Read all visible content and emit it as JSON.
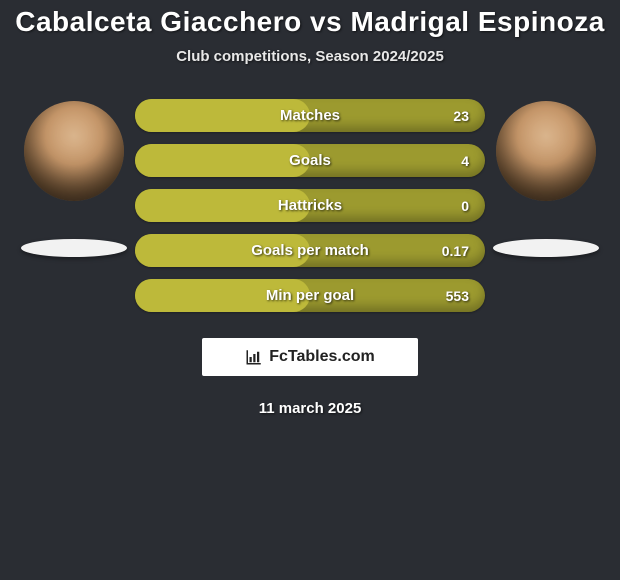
{
  "title": "Cabalceta Giacchero vs Madrigal Espinoza",
  "subtitle": "Club competitions, Season 2024/2025",
  "date": "11 march 2025",
  "brand": {
    "text": "FcTables.com"
  },
  "colors": {
    "background": "#2a2d33",
    "bar_base": "#9c9a2f",
    "bar_fill": "#bdb93a",
    "text": "#ffffff",
    "badge": "#f2f2f2",
    "brand_bg": "#ffffff",
    "brand_text": "#222222"
  },
  "stats": [
    {
      "label": "Matches",
      "value": "23",
      "fill_pct": 50
    },
    {
      "label": "Goals",
      "value": "4",
      "fill_pct": 50
    },
    {
      "label": "Hattricks",
      "value": "0",
      "fill_pct": 50
    },
    {
      "label": "Goals per match",
      "value": "0.17",
      "fill_pct": 50
    },
    {
      "label": "Min per goal",
      "value": "553",
      "fill_pct": 50
    }
  ]
}
